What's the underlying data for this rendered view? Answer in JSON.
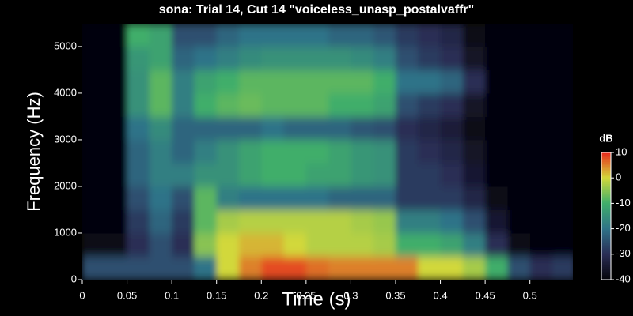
{
  "chart_data": {
    "type": "heatmap",
    "title": "sona: Trial 14, Cut 14 \"voiceless_unasp_postalvaffr\"",
    "x_label": "Time (s)",
    "y_label": "Frequency (Hz)",
    "colorbar_label": "dB",
    "xlim": [
      0,
      0.548
    ],
    "ylim": [
      0,
      5490
    ],
    "xticks": [
      0,
      0.05,
      0.1,
      0.15,
      0.2,
      0.25,
      0.3,
      0.35,
      0.4,
      0.45,
      0.5
    ],
    "yticks": [
      0,
      1000,
      2000,
      3000,
      4000,
      5000
    ],
    "clim": [
      -40,
      10
    ],
    "cticks": [
      -40,
      -30,
      -20,
      -10,
      0,
      10
    ],
    "colorscale": [
      "#05050a",
      "#2a2d55",
      "#2f7388",
      "#3fae6a",
      "#d2d83a",
      "#e8281c"
    ],
    "xbins": [
      0,
      0.025,
      0.05,
      0.075,
      0.1,
      0.125,
      0.15,
      0.175,
      0.2,
      0.225,
      0.25,
      0.275,
      0.3,
      0.325,
      0.35,
      0.375,
      0.4,
      0.425,
      0.45,
      0.475,
      0.5,
      0.525,
      0.55
    ],
    "ybins": [
      0,
      500,
      1000,
      1500,
      2000,
      2500,
      3000,
      3500,
      4000,
      4500,
      5000,
      5500
    ],
    "z": [
      [
        -25,
        -25,
        -25,
        -25,
        -25,
        -20,
        0,
        5,
        8,
        8,
        6,
        5,
        5,
        5,
        5,
        0,
        0,
        -3,
        -10,
        -25,
        -30,
        -28
      ],
      [
        -38,
        -38,
        -30,
        -25,
        -30,
        -5,
        0,
        2,
        2,
        0,
        -2,
        -2,
        -2,
        -3,
        -10,
        -10,
        -12,
        -18,
        -30,
        -38,
        -40,
        -40
      ],
      [
        -40,
        -40,
        -28,
        -22,
        -28,
        -8,
        -3,
        -2,
        -2,
        -2,
        -2,
        -2,
        -3,
        -4,
        -18,
        -18,
        -20,
        -25,
        -35,
        -40,
        -40,
        -40
      ],
      [
        -40,
        -40,
        -25,
        -20,
        -25,
        -8,
        -18,
        -20,
        -20,
        -20,
        -20,
        -22,
        -22,
        -22,
        -28,
        -28,
        -28,
        -32,
        -38,
        -40,
        -40,
        -40
      ],
      [
        -40,
        -40,
        -22,
        -18,
        -18,
        -15,
        -15,
        -12,
        -10,
        -10,
        -12,
        -12,
        -14,
        -15,
        -28,
        -28,
        -30,
        -35,
        -40,
        -40,
        -40,
        -40
      ],
      [
        -40,
        -40,
        -22,
        -18,
        -22,
        -18,
        -15,
        -12,
        -10,
        -10,
        -10,
        -12,
        -14,
        -15,
        -28,
        -30,
        -32,
        -36,
        -40,
        -40,
        -40,
        -40
      ],
      [
        -40,
        -40,
        -20,
        -16,
        -22,
        -22,
        -22,
        -22,
        -20,
        -22,
        -22,
        -22,
        -24,
        -25,
        -30,
        -32,
        -34,
        -38,
        -40,
        -40,
        -40,
        -40
      ],
      [
        -40,
        -40,
        -15,
        -8,
        -18,
        -10,
        -8,
        -7,
        -8,
        -8,
        -8,
        -10,
        -10,
        -12,
        -25,
        -28,
        -30,
        -36,
        -40,
        -40,
        -40,
        -40
      ],
      [
        -40,
        -40,
        -15,
        -8,
        -18,
        -12,
        -10,
        -8,
        -8,
        -8,
        -8,
        -8,
        -8,
        -10,
        -20,
        -20,
        -22,
        -30,
        -40,
        -40,
        -40,
        -40
      ],
      [
        -40,
        -40,
        -14,
        -12,
        -22,
        -20,
        -18,
        -16,
        -15,
        -15,
        -15,
        -15,
        -16,
        -18,
        -25,
        -28,
        -30,
        -36,
        -40,
        -40,
        -40,
        -40
      ],
      [
        -40,
        -40,
        -10,
        -12,
        -25,
        -25,
        -22,
        -20,
        -20,
        -20,
        -20,
        -22,
        -22,
        -24,
        -28,
        -30,
        -32,
        -38,
        -40,
        -40,
        -40,
        -40
      ]
    ]
  }
}
